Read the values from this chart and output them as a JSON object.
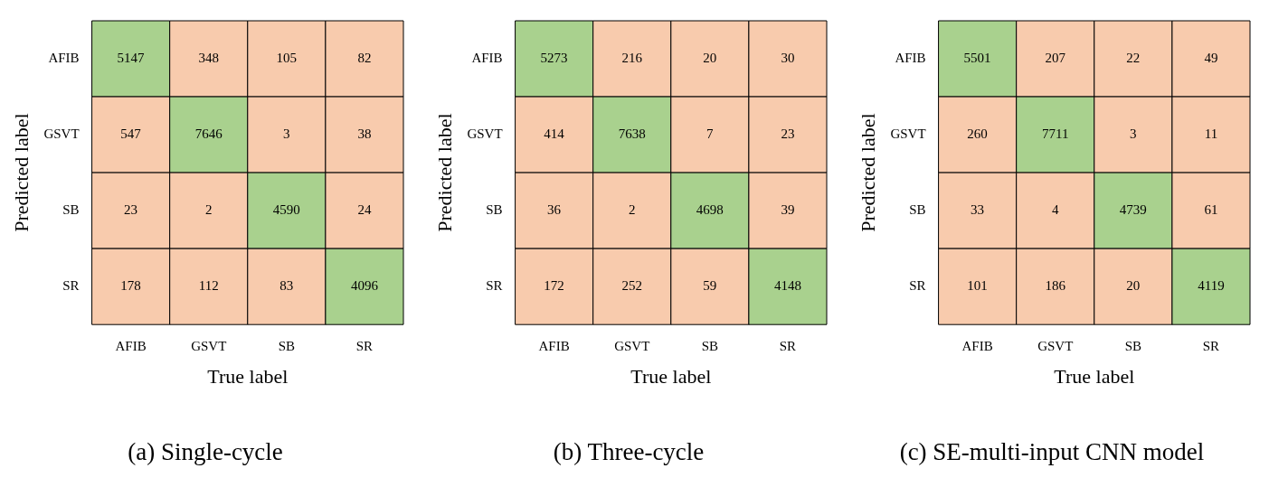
{
  "chart_data": [
    {
      "type": "heatmap",
      "title": "(a) Single-cycle",
      "xlabel": "True label",
      "ylabel": "Predicted label",
      "categories": [
        "AFIB",
        "GSVT",
        "SB",
        "SR"
      ],
      "y_categories": [
        "AFIB",
        "GSVT",
        "SB",
        "SR"
      ],
      "data_labels": true,
      "cells": [
        [
          5147,
          348,
          105,
          82
        ],
        [
          547,
          7646,
          3,
          38
        ],
        [
          23,
          2,
          4590,
          24
        ],
        [
          178,
          112,
          83,
          4096
        ]
      ],
      "colors": [
        [
          "#a9d18e",
          "#f8cbad",
          "#f8cbad",
          "#f8cbad"
        ],
        [
          "#f8cbad",
          "#a9d18e",
          "#f8cbad",
          "#f8cbad"
        ],
        [
          "#f8cbad",
          "#f8cbad",
          "#a9d18e",
          "#f8cbad"
        ],
        [
          "#f8cbad",
          "#f8cbad",
          "#f8cbad",
          "#a9d18e"
        ]
      ]
    },
    {
      "type": "heatmap",
      "title": "(b) Three-cycle",
      "xlabel": "True label",
      "ylabel": "Predicted label",
      "categories": [
        "AFIB",
        "GSVT",
        "SB",
        "SR"
      ],
      "y_categories": [
        "AFIB",
        "GSVT",
        "SB",
        "SR"
      ],
      "data_labels": true,
      "cells": [
        [
          5273,
          216,
          20,
          30
        ],
        [
          414,
          7638,
          7,
          23
        ],
        [
          36,
          2,
          4698,
          39
        ],
        [
          172,
          252,
          59,
          4148
        ]
      ],
      "colors": [
        [
          "#a9d18e",
          "#f8cbad",
          "#f8cbad",
          "#f8cbad"
        ],
        [
          "#f8cbad",
          "#a9d18e",
          "#f8cbad",
          "#f8cbad"
        ],
        [
          "#f8cbad",
          "#f8cbad",
          "#a9d18e",
          "#f8cbad"
        ],
        [
          "#f8cbad",
          "#f8cbad",
          "#f8cbad",
          "#a9d18e"
        ]
      ]
    },
    {
      "type": "heatmap",
      "title": "(c) SE-multi-input CNN model",
      "xlabel": "True label",
      "ylabel": "Predicted label",
      "categories": [
        "AFIB",
        "GSVT",
        "SB",
        "SR"
      ],
      "y_categories": [
        "AFIB",
        "GSVT",
        "SB",
        "SR"
      ],
      "data_labels": true,
      "cells": [
        [
          5501,
          207,
          22,
          49
        ],
        [
          260,
          7711,
          3,
          11
        ],
        [
          33,
          4,
          4739,
          61
        ],
        [
          101,
          186,
          20,
          4119
        ]
      ],
      "colors": [
        [
          "#a9d18e",
          "#f8cbad",
          "#f8cbad",
          "#f8cbad"
        ],
        [
          "#f8cbad",
          "#a9d18e",
          "#f8cbad",
          "#f8cbad"
        ],
        [
          "#f8cbad",
          "#f8cbad",
          "#a9d18e",
          "#f8cbad"
        ],
        [
          "#f8cbad",
          "#f8cbad",
          "#f8cbad",
          "#a9d18e"
        ]
      ]
    }
  ]
}
